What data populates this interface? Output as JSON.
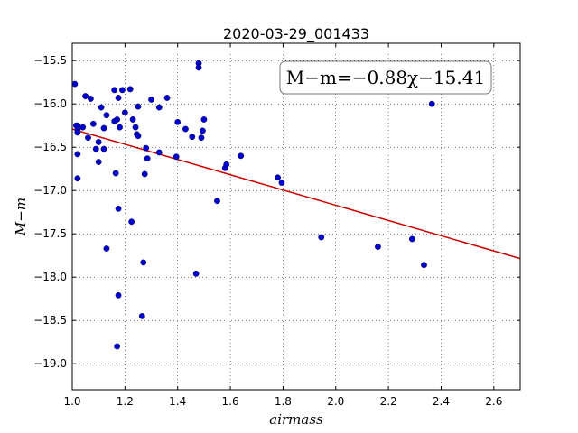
{
  "chart_data": {
    "type": "scatter",
    "title": "2020-03-29_001433",
    "xlabel": "airmass",
    "ylabel": "M−m",
    "xlim": [
      1.0,
      2.7
    ],
    "ylim": [
      -19.3,
      -15.3
    ],
    "y_inverted": true,
    "grid": true,
    "x_ticks": [
      "1.0",
      "1.2",
      "1.4",
      "1.6",
      "1.8",
      "2.0",
      "2.2",
      "2.4",
      "2.6"
    ],
    "y_ticks": [
      "−15.5",
      "−16.0",
      "−16.5",
      "−17.0",
      "−17.5",
      "−18.0",
      "−18.5",
      "−19.0"
    ],
    "annotation": "M−m=−0.88χ−15.41",
    "fit": {
      "slope": -0.88,
      "intercept": -15.41,
      "color": "#cc0000"
    },
    "point_color": "#0000cc",
    "points": [
      [
        1.01,
        -15.77
      ],
      [
        1.02,
        -16.25
      ],
      [
        1.015,
        -16.25
      ],
      [
        1.02,
        -16.3
      ],
      [
        1.02,
        -16.33
      ],
      [
        1.02,
        -16.58
      ],
      [
        1.02,
        -16.86
      ],
      [
        1.04,
        -16.27
      ],
      [
        1.05,
        -15.91
      ],
      [
        1.06,
        -16.39
      ],
      [
        1.07,
        -15.94
      ],
      [
        1.08,
        -16.23
      ],
      [
        1.09,
        -16.52
      ],
      [
        1.1,
        -16.67
      ],
      [
        1.1,
        -16.44
      ],
      [
        1.11,
        -16.04
      ],
      [
        1.12,
        -16.52
      ],
      [
        1.12,
        -16.28
      ],
      [
        1.13,
        -16.13
      ],
      [
        1.13,
        -17.67
      ],
      [
        1.16,
        -15.84
      ],
      [
        1.16,
        -16.2
      ],
      [
        1.165,
        -16.8
      ],
      [
        1.17,
        -16.18
      ],
      [
        1.175,
        -15.93
      ],
      [
        1.18,
        -16.27
      ],
      [
        1.175,
        -17.21
      ],
      [
        1.175,
        -18.21
      ],
      [
        1.17,
        -18.8
      ],
      [
        1.19,
        -15.84
      ],
      [
        1.2,
        -16.1
      ],
      [
        1.22,
        -15.83
      ],
      [
        1.225,
        -17.36
      ],
      [
        1.23,
        -16.18
      ],
      [
        1.24,
        -16.27
      ],
      [
        1.245,
        -16.35
      ],
      [
        1.25,
        -16.37
      ],
      [
        1.25,
        -16.03
      ],
      [
        1.265,
        -18.45
      ],
      [
        1.27,
        -17.83
      ],
      [
        1.275,
        -16.81
      ],
      [
        1.28,
        -16.51
      ],
      [
        1.285,
        -16.63
      ],
      [
        1.3,
        -15.95
      ],
      [
        1.33,
        -16.04
      ],
      [
        1.33,
        -16.56
      ],
      [
        1.36,
        -15.93
      ],
      [
        1.395,
        -16.61
      ],
      [
        1.4,
        -16.21
      ],
      [
        1.43,
        -16.29
      ],
      [
        1.455,
        -16.38
      ],
      [
        1.47,
        -17.96
      ],
      [
        1.48,
        -15.53
      ],
      [
        1.48,
        -15.58
      ],
      [
        1.49,
        -16.39
      ],
      [
        1.495,
        -16.31
      ],
      [
        1.5,
        -16.18
      ],
      [
        1.55,
        -17.12
      ],
      [
        1.58,
        -16.74
      ],
      [
        1.585,
        -16.7
      ],
      [
        1.64,
        -16.6
      ],
      [
        1.78,
        -16.85
      ],
      [
        1.795,
        -16.91
      ],
      [
        1.945,
        -17.54
      ],
      [
        2.16,
        -17.65
      ],
      [
        2.29,
        -17.56
      ],
      [
        2.335,
        -17.86
      ],
      [
        2.365,
        -16.0
      ]
    ]
  }
}
